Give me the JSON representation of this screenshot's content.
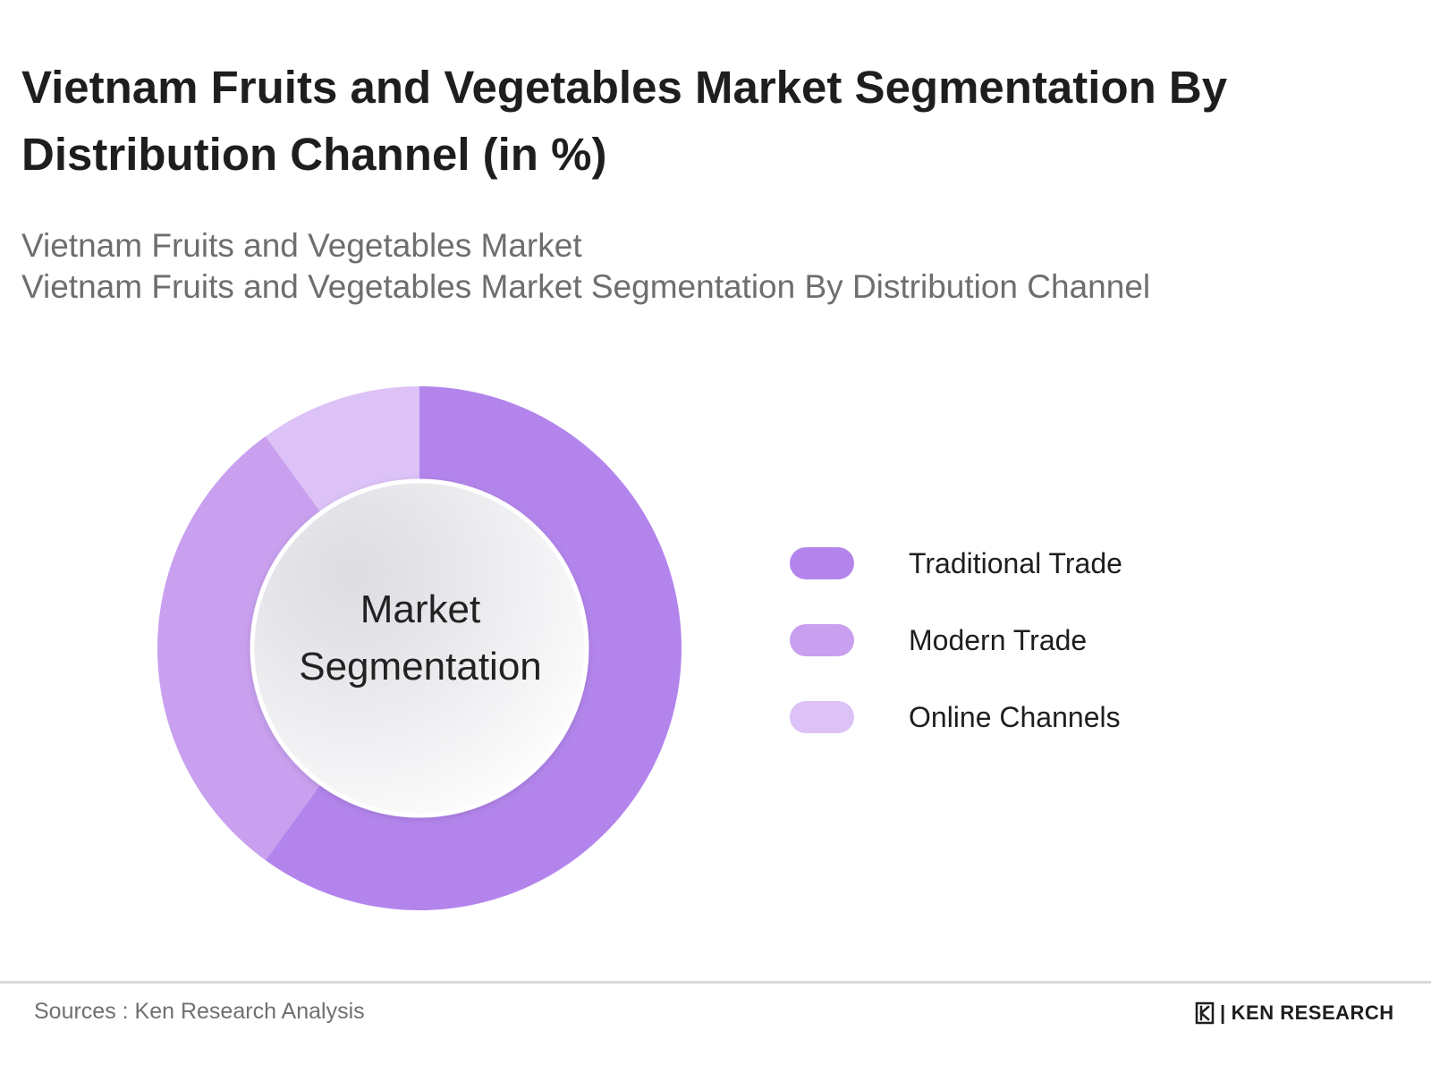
{
  "title_lines": [
    "Vietnam Fruits and Vegetables Market Segmentation By",
    "Distribution Channel (in %)"
  ],
  "subtitle_lines": [
    "Vietnam Fruits and Vegetables Market",
    "Vietnam Fruits and Vegetables Market Segmentation By Distribution Channel"
  ],
  "center_label_lines": [
    "Market",
    "Segmentation"
  ],
  "source": "Sources : Ken Research Analysis",
  "logo": {
    "brand": "KEN RESEARCH",
    "separator": "|"
  },
  "chart_data": {
    "type": "pie",
    "variant": "donut",
    "title": "Vietnam Fruits and Vegetables Market Segmentation By Distribution Channel (in %)",
    "categories": [
      "Traditional Trade",
      "Modern Trade",
      "Online Channels"
    ],
    "values": [
      60,
      30,
      10
    ],
    "colors": [
      "#b385ec",
      "#c8a0ef",
      "#dcc2f7"
    ],
    "legend_position": "right",
    "start_angle_deg": 0,
    "direction": "clockwise"
  }
}
